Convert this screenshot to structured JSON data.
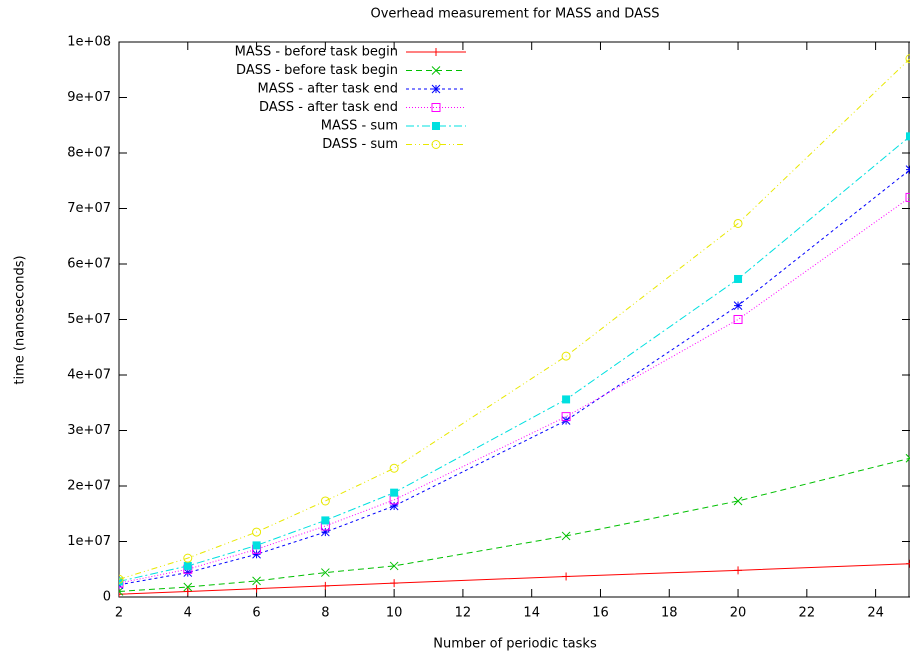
{
  "chart_data": {
    "type": "line",
    "title": "Overhead measurement for MASS and DASS",
    "x_label": "Number of periodic tasks",
    "y_label": "time (nanoseconds)",
    "x": [
      2,
      4,
      6,
      8,
      10,
      15,
      20,
      25
    ],
    "xlim": [
      2,
      25
    ],
    "xticks": [
      2,
      4,
      6,
      8,
      10,
      12,
      14,
      16,
      18,
      20,
      22,
      24
    ],
    "ylim": [
      0,
      100000000
    ],
    "yticks": [
      0,
      {
        "value": 10000000,
        "label": "1e+07"
      },
      {
        "value": 20000000,
        "label": "2e+07"
      },
      {
        "value": 30000000,
        "label": "3e+07"
      },
      {
        "value": 40000000,
        "label": "4e+07"
      },
      {
        "value": 50000000,
        "label": "5e+07"
      },
      {
        "value": 60000000,
        "label": "6e+07"
      },
      {
        "value": 70000000,
        "label": "7e+07"
      },
      {
        "value": 80000000,
        "label": "8e+07"
      },
      {
        "value": 90000000,
        "label": "9e+07"
      },
      {
        "value": 100000000,
        "label": "1e+08"
      }
    ],
    "legend_position": "top-left",
    "series": [
      {
        "name": "MASS - before task begin",
        "color": "#ff0000",
        "marker": "plus",
        "dash": "solid",
        "values": [
          500000,
          1000000,
          1500000,
          2000000,
          2500000,
          3700000,
          4800000,
          6000000
        ]
      },
      {
        "name": "DASS - before task begin",
        "color": "#00c000",
        "marker": "cross",
        "dash": "dashed",
        "values": [
          1000000,
          1800000,
          2900000,
          4400000,
          5600000,
          11000000,
          17300000,
          25000000
        ]
      },
      {
        "name": "MASS - after task end",
        "color": "#0000ff",
        "marker": "star",
        "dash": "short-dashed",
        "values": [
          2200000,
          4400000,
          7700000,
          11700000,
          16400000,
          31800000,
          52500000,
          77000000
        ]
      },
      {
        "name": "DASS - after task end",
        "color": "#ff00ff",
        "marker": "open-square",
        "dash": "dotted",
        "values": [
          2500000,
          5000000,
          8600000,
          12800000,
          17500000,
          32500000,
          50000000,
          72000000
        ]
      },
      {
        "name": "MASS - sum",
        "color": "#00e0e0",
        "marker": "filled-square",
        "dash": "dash-dot",
        "values": [
          2800000,
          5600000,
          9300000,
          13800000,
          18800000,
          35600000,
          57300000,
          83000000
        ]
      },
      {
        "name": "DASS - sum",
        "color": "#e8e800",
        "marker": "open-circle",
        "dash": "dash-dot-dot",
        "values": [
          3200000,
          7000000,
          11700000,
          17300000,
          23200000,
          43400000,
          67300000,
          97000000
        ]
      }
    ]
  }
}
